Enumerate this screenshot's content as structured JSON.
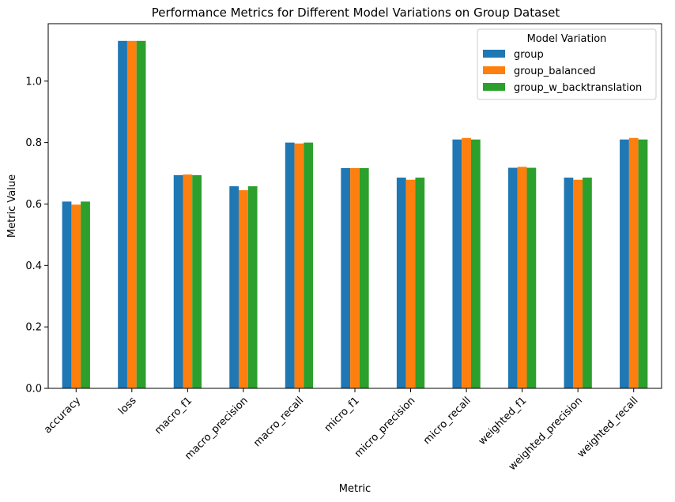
{
  "chart_data": {
    "type": "bar",
    "title": "Performance Metrics for Different Model Variations on Group Dataset",
    "xlabel": "Metric",
    "ylabel": "Metric Value",
    "ylim": [
      0,
      1.187
    ],
    "yticks": [
      0.0,
      0.2,
      0.4,
      0.6,
      0.8,
      1.0
    ],
    "ytick_labels": [
      "0.0",
      "0.2",
      "0.4",
      "0.6",
      "0.8",
      "1.0"
    ],
    "grid": false,
    "legend": {
      "title": "Model Variation",
      "placement": "top-right"
    },
    "categories": [
      "accuracy",
      "loss",
      "macro_f1",
      "macro_precision",
      "macro_recall",
      "micro_f1",
      "micro_precision",
      "micro_recall",
      "weighted_f1",
      "weighted_precision",
      "weighted_recall"
    ],
    "series": [
      {
        "name": "group",
        "color": "#1f77b4",
        "values": [
          0.608,
          1.131,
          0.694,
          0.658,
          0.8,
          0.717,
          0.686,
          0.81,
          0.718,
          0.686,
          0.81
        ]
      },
      {
        "name": "group_balanced",
        "color": "#ff7f0e",
        "values": [
          0.598,
          1.131,
          0.696,
          0.645,
          0.797,
          0.717,
          0.679,
          0.815,
          0.721,
          0.679,
          0.815
        ]
      },
      {
        "name": "group_w_backtranslation",
        "color": "#2ca02c",
        "values": [
          0.608,
          1.131,
          0.694,
          0.658,
          0.8,
          0.717,
          0.686,
          0.81,
          0.718,
          0.686,
          0.81
        ]
      }
    ]
  }
}
